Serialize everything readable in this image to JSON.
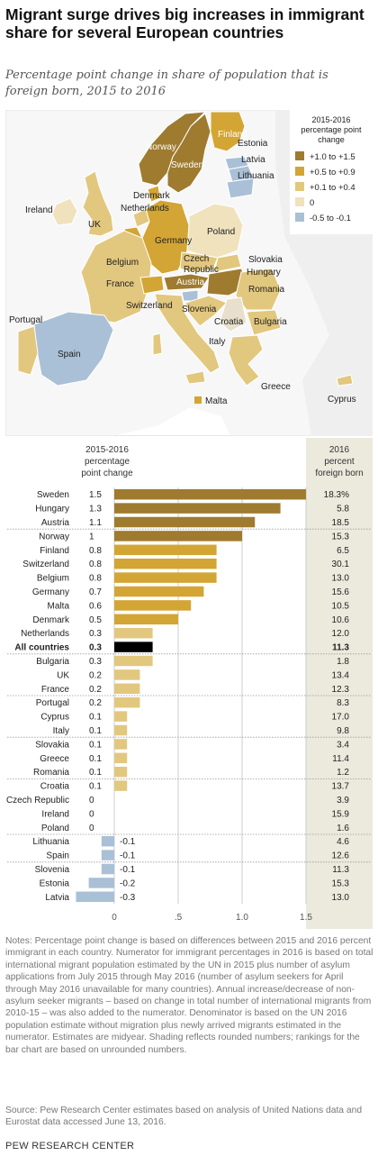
{
  "title": "Migrant surge drives big increases in immigrant share for several European countries",
  "subtitle": "Percentage point change in share of population that is foreign born, 2015 to 2016",
  "map": {
    "legend_title": [
      "2015-2016",
      "percentage point",
      "change"
    ],
    "legend": [
      {
        "label": "+1.0 to +1.5",
        "color": "#9e7b2f"
      },
      {
        "label": "+0.5 to +0.9",
        "color": "#d3a534"
      },
      {
        "label": "+0.1 to +0.4",
        "color": "#e2c77e"
      },
      {
        "label": "0",
        "color": "#efe2bd"
      },
      {
        "label": "-0.5 to -0.1",
        "color": "#a9c0d6"
      }
    ],
    "labels": {
      "norway": "Norway",
      "sweden": "Sweden",
      "finland": "Finland",
      "estonia": "Estonia",
      "latvia": "Latvia",
      "lithuania": "Lithuania",
      "ireland": "Ireland",
      "uk": "UK",
      "denmark": "Denmark",
      "netherlands": "Netherlands",
      "germany": "Germany",
      "poland": "Poland",
      "belgium": "Belgium",
      "czech1": "Czech",
      "czech2": "Republic",
      "slovakia": "Slovakia",
      "austria": "Austria",
      "hungary": "Hungary",
      "france": "France",
      "switzerland": "Switzerland",
      "slovenia": "Slovenia",
      "romania": "Romania",
      "croatia": "Croatia",
      "bulgaria": "Bulgaria",
      "portugal": "Portugal",
      "spain": "Spain",
      "italy": "Italy",
      "greece": "Greece",
      "cyprus": "Cyprus",
      "malta": "Malta"
    }
  },
  "chart_data": {
    "type": "bar",
    "orientation": "horizontal",
    "left_header": [
      "2015-2016",
      "percentage",
      "point change"
    ],
    "right_header": [
      "2016",
      "percent",
      "foreign born"
    ],
    "xlim": [
      -0.3,
      1.5
    ],
    "xticks": [
      "0",
      ".5",
      "1.0",
      "1.5"
    ],
    "colors": {
      "high": "#9e7b2f",
      "mid": "#d3a534",
      "low": "#e2c77e",
      "neg": "#a9c0d6",
      "total": "#000000"
    },
    "categories": [
      "Sweden",
      "Hungary",
      "Austria",
      "Norway",
      "Finland",
      "Switzerland",
      "Belgium",
      "Germany",
      "Malta",
      "Denmark",
      "Netherlands",
      "All countries",
      "Bulgaria",
      "UK",
      "France",
      "Portugal",
      "Cyprus",
      "Italy",
      "Slovakia",
      "Greece",
      "Romania",
      "Croatia",
      "Czech Republic",
      "Ireland",
      "Poland",
      "Lithuania",
      "Spain",
      "Slovenia",
      "Estonia",
      "Latvia"
    ],
    "values": [
      1.5,
      1.3,
      1.1,
      1,
      0.8,
      0.8,
      0.8,
      0.7,
      0.6,
      0.5,
      0.3,
      0.3,
      0.3,
      0.2,
      0.2,
      0.2,
      0.1,
      0.1,
      0.1,
      0.1,
      0.1,
      0.1,
      0,
      0,
      0,
      -0.1,
      -0.1,
      -0.1,
      -0.2,
      -0.3
    ],
    "value_labels": [
      "1.5",
      "1.3",
      "1.1",
      "1",
      "0.8",
      "0.8",
      "0.8",
      "0.7",
      "0.6",
      "0.5",
      "0.3",
      "0.3",
      "0.3",
      "0.2",
      "0.2",
      "0.2",
      "0.1",
      "0.1",
      "0.1",
      "0.1",
      "0.1",
      "0.1",
      "0",
      "0",
      "0",
      "-0.1",
      "-0.1",
      "-0.1",
      "-0.2",
      "-0.3"
    ],
    "percent_foreign_born": [
      "18.3%",
      "5.8",
      "18.5",
      "15.3",
      "6.5",
      "30.1",
      "13.0",
      "15.6",
      "10.5",
      "10.6",
      "12.0",
      "11.3",
      "1.8",
      "13.4",
      "12.3",
      "8.3",
      "17.0",
      "9.8",
      "3.4",
      "11.4",
      "1.2",
      "13.7",
      "3.9",
      "15.9",
      "1.6",
      "4.6",
      "12.6",
      "11.3",
      "15.3",
      "13.0"
    ],
    "highlight": "All countries"
  },
  "notes": "Notes: Percentage point change is based on differences between 2015 and 2016 percent immigrant in each country. Numerator for immigrant percentages in 2016 is based on total international migrant population estimated by the UN in 2015 plus number of asylum applications from July 2015 through May 2016 (number of asylum seekers for April through May 2016 unavailable for many countries). Annual increase/decrease of non-asylum seeker migrants – based on change in total number of international migrants from 2010-15 – was also added to the numerator. Denominator is based on the UN 2016 population estimate without migration plus newly arrived migrants estimated in the numerator. Estimates are midyear. Shading reflects rounded numbers; rankings for the bar chart are based on unrounded numbers.",
  "source": "Source: Pew Research Center estimates based on analysis of United Nations data and Eurostat data accessed June 13, 2016.",
  "brand": "PEW RESEARCH CENTER"
}
